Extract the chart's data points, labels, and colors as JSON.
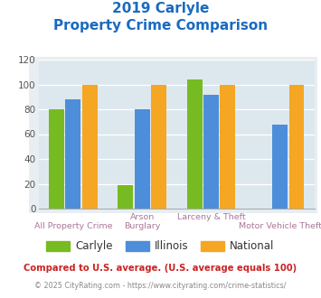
{
  "title_line1": "2019 Carlyle",
  "title_line2": "Property Crime Comparison",
  "series": {
    "Carlyle": [
      80,
      19,
      104,
      0
    ],
    "Illinois": [
      88,
      80,
      92,
      68
    ],
    "National": [
      100,
      100,
      100,
      100
    ]
  },
  "colors": {
    "Carlyle": "#77bb22",
    "Illinois": "#4d8edb",
    "National": "#f5a623"
  },
  "top_xlabels": [
    "",
    "Arson",
    "Larceny & Theft",
    ""
  ],
  "bot_xlabels": [
    "All Property Crime",
    "Burglary",
    "",
    "Motor Vehicle Theft"
  ],
  "ylim": [
    0,
    120
  ],
  "yticks": [
    0,
    20,
    40,
    60,
    80,
    100,
    120
  ],
  "bar_width": 0.24,
  "title_color": "#1a6abf",
  "xlabel_color": "#aa7799",
  "footnote1": "Compared to U.S. average. (U.S. average equals 100)",
  "footnote2": "© 2025 CityRating.com - https://www.cityrating.com/crime-statistics/",
  "footnote1_color": "#cc2222",
  "footnote2_color": "#888888",
  "bg_color": "#ffffff",
  "plot_bg_color": "#dde8ee",
  "outer_bg_color": "#e8eef2"
}
